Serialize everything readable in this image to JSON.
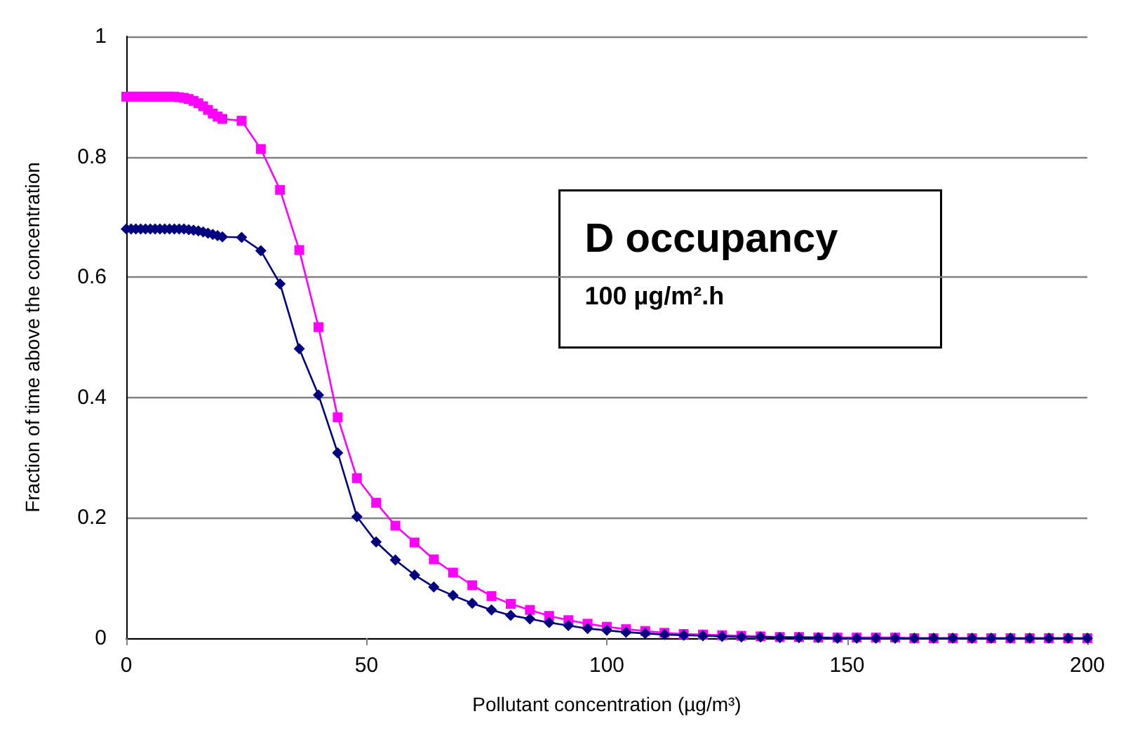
{
  "chart_data": {
    "type": "line",
    "xlabel": "Pollutant concentration (µg/m³)",
    "ylabel": "Fraction of time above the concentration",
    "annotations": [
      "D occupancy",
      "100 µg/m².h"
    ],
    "xlim": [
      0,
      200
    ],
    "xticks": [
      0,
      50,
      100,
      150,
      200
    ],
    "ylim": [
      0,
      1
    ],
    "yticks": [
      0,
      0.2,
      0.4,
      0.6,
      0.8,
      1
    ],
    "grid": "y",
    "x": [
      0,
      1,
      2,
      3,
      4,
      5,
      6,
      7,
      8,
      9,
      10,
      11,
      12,
      13,
      14,
      15,
      16,
      17,
      18,
      19,
      20,
      24,
      28,
      32,
      36,
      40,
      44,
      48,
      52,
      56,
      60,
      64,
      68,
      72,
      76,
      80,
      84,
      88,
      92,
      96,
      100,
      104,
      108,
      112,
      116,
      120,
      124,
      128,
      132,
      136,
      140,
      144,
      148,
      152,
      156,
      160,
      164,
      168,
      172,
      176,
      180,
      184,
      188,
      192,
      196,
      200
    ],
    "series": [
      {
        "color": "#ff00ff",
        "marker": "square",
        "values": [
          0.9,
          0.9,
          0.9,
          0.9,
          0.9,
          0.9,
          0.9,
          0.9,
          0.9,
          0.9,
          0.9,
          0.899,
          0.898,
          0.896,
          0.893,
          0.889,
          0.884,
          0.878,
          0.872,
          0.867,
          0.863,
          0.86,
          0.813,
          0.745,
          0.645,
          0.517,
          0.367,
          0.266,
          0.225,
          0.187,
          0.159,
          0.131,
          0.109,
          0.088,
          0.07,
          0.057,
          0.047,
          0.037,
          0.03,
          0.024,
          0.019,
          0.015,
          0.012,
          0.009,
          0.007,
          0.006,
          0.005,
          0.004,
          0.003,
          0.002,
          0.002,
          0.001,
          0.001,
          0.001,
          0.001,
          0.001,
          0,
          0,
          0,
          0,
          0,
          0,
          0,
          0,
          0,
          0
        ]
      },
      {
        "color": "#000080",
        "marker": "diamond",
        "values": [
          0.68,
          0.68,
          0.68,
          0.68,
          0.68,
          0.68,
          0.68,
          0.68,
          0.68,
          0.68,
          0.68,
          0.68,
          0.68,
          0.679,
          0.678,
          0.677,
          0.675,
          0.673,
          0.671,
          0.669,
          0.667,
          0.666,
          0.644,
          0.589,
          0.481,
          0.404,
          0.308,
          0.202,
          0.16,
          0.13,
          0.105,
          0.085,
          0.071,
          0.058,
          0.047,
          0.038,
          0.032,
          0.026,
          0.021,
          0.016,
          0.013,
          0.01,
          0.008,
          0.006,
          0.005,
          0.004,
          0.003,
          0.002,
          0.002,
          0.001,
          0.001,
          0.001,
          0,
          0,
          0,
          0,
          0,
          0,
          0,
          0,
          0,
          0,
          0,
          0,
          0,
          0
        ]
      }
    ]
  }
}
